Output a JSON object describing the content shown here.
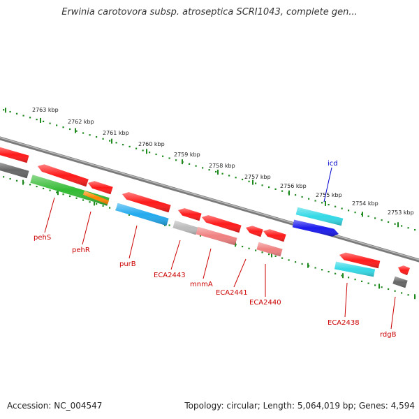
{
  "title": "Erwinia carotovora subsp. atroseptica SCRI1043, complete gen...",
  "accession": "Accession: NC_004547",
  "topology": "Topology: circular; Length: 5,064,019 bp; Genes: 4,594",
  "colors": {
    "backbone": "#7a7a7a",
    "ruler": "#1e8a1e",
    "label_red": "#cc0000",
    "label_blue": "#0000cc",
    "gene_red": "#ff1a1a",
    "gene_pink": "#f08080",
    "gene_cyan": "#33d9e6",
    "gene_skyblue": "#22aaee",
    "gene_blue": "#1a1aee",
    "gene_green": "#33bb33",
    "gene_orange": "#ff8800",
    "gene_gray": "#666666",
    "gene_lightgray": "#bbbbbb"
  },
  "ticks": [
    {
      "label": "2763 kbp"
    },
    {
      "label": "2762 kbp"
    },
    {
      "label": "2761 kbp"
    },
    {
      "label": "2760 kbp"
    },
    {
      "label": "2759 kbp"
    },
    {
      "label": "2758 kbp"
    },
    {
      "label": "2757 kbp"
    },
    {
      "label": "2756 kbp"
    },
    {
      "label": "2755 kbp"
    },
    {
      "label": "2754 kbp"
    },
    {
      "label": "2753 kbp"
    }
  ],
  "gene_labels": [
    {
      "name": "pehS",
      "color": "red"
    },
    {
      "name": "pehR",
      "color": "red"
    },
    {
      "name": "purB",
      "color": "red"
    },
    {
      "name": "ECA2443",
      "color": "red"
    },
    {
      "name": "mnmA",
      "color": "red"
    },
    {
      "name": "ECA2441",
      "color": "red"
    },
    {
      "name": "ECA2440",
      "color": "red"
    },
    {
      "name": "ECA2438",
      "color": "red"
    },
    {
      "name": "rdgB",
      "color": "red"
    },
    {
      "name": "icd",
      "color": "blue"
    }
  ]
}
